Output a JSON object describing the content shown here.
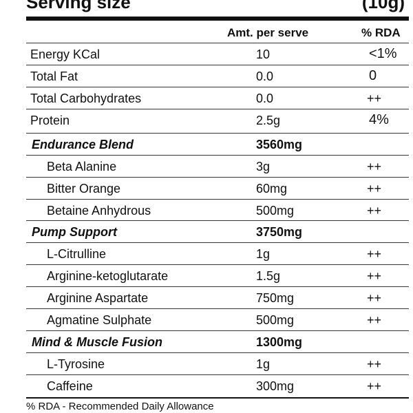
{
  "serving": {
    "label": "Serving size",
    "value": "(10g)"
  },
  "header": {
    "amount": "Amt. per serve",
    "rda": "% RDA"
  },
  "rows": [
    {
      "name": "Energy KCal",
      "amount": "10",
      "rda": "<1%"
    },
    {
      "name": "Total Fat",
      "amount": "0.0",
      "rda": "0"
    },
    {
      "name": "Total Carbohydrates",
      "amount": "0.0",
      "rda": "++"
    },
    {
      "name": "Protein",
      "amount": "2.5g",
      "rda": "4%"
    },
    {
      "name": "Endurance Blend",
      "amount": "3560mg",
      "rda": ""
    },
    {
      "name": "Beta Alanine",
      "amount": "3g",
      "rda": "++"
    },
    {
      "name": "Bitter Orange",
      "amount": "60mg",
      "rda": "++"
    },
    {
      "name": "Betaine Anhydrous",
      "amount": "500mg",
      "rda": "++"
    },
    {
      "name": "Pump Support",
      "amount": "3750mg",
      "rda": ""
    },
    {
      "name": "L-Citrulline",
      "amount": "1g",
      "rda": "++"
    },
    {
      "name": "Arginine-ketoglutarate",
      "amount": "1.5g",
      "rda": "++"
    },
    {
      "name": "Arginine Aspartate",
      "amount": "750mg",
      "rda": "++"
    },
    {
      "name": "Agmatine Sulphate",
      "amount": "500mg",
      "rda": "++"
    },
    {
      "name": "Mind & Muscle Fusion",
      "amount": "1300mg",
      "rda": ""
    },
    {
      "name": "L-Tyrosine",
      "amount": "1g",
      "rda": "++"
    },
    {
      "name": "Caffeine",
      "amount": "300mg",
      "rda": "++"
    }
  ],
  "footnote": "% RDA - Recommended Daily Allowance"
}
